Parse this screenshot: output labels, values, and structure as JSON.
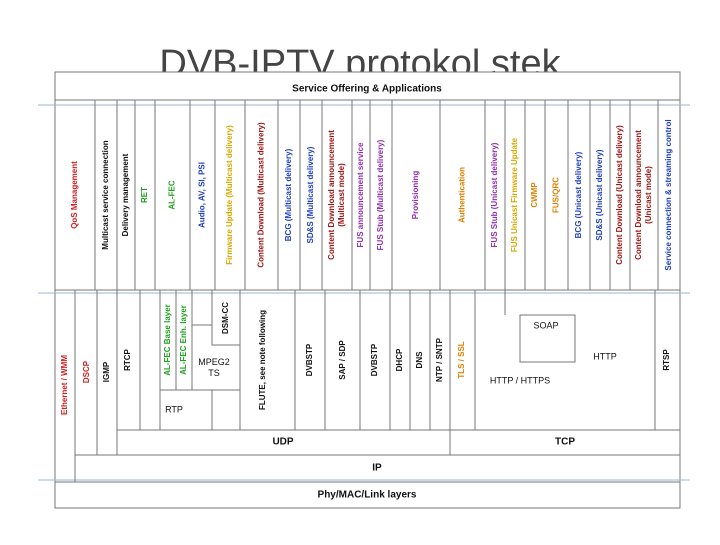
{
  "title": "DVB-IPTV protokol stek",
  "header": "Service Offering & Applications",
  "applications": [
    {
      "lines": [
        "QoS Management"
      ],
      "color": "#d02020"
    },
    {
      "lines": [
        "Multicast service connection"
      ],
      "color": "#111111"
    },
    {
      "lines": [
        "Delivery management"
      ],
      "color": "#111111"
    },
    {
      "lines": [
        "RET"
      ],
      "color": "#20a020"
    },
    {
      "lines": [
        "AL-FEC"
      ],
      "color": "#20a020"
    },
    {
      "lines": [
        "Audio, AV, SI, PSI"
      ],
      "color": "#2040c0"
    },
    {
      "lines": [
        "Firmware Update (Multicast delivery)"
      ],
      "color": "#d8a800"
    },
    {
      "lines": [
        "Content Download (Multicast delivery)"
      ],
      "color": "#a01818"
    },
    {
      "lines": [
        "BCG (Multicast delivery)"
      ],
      "color": "#2040c0"
    },
    {
      "lines": [
        "SD&S (Multicast delivery)"
      ],
      "color": "#2040c0"
    },
    {
      "lines": [
        "Content Download announcement",
        "(Multicast mode)"
      ],
      "color": "#a01818"
    },
    {
      "lines": [
        "FUS announcement service"
      ],
      "color": "#9030b0"
    },
    {
      "lines": [
        "FUS Stub (Multicast delivery)"
      ],
      "color": "#9030b0"
    },
    {
      "lines": [
        "Provisioning"
      ],
      "color": "#9030b0"
    },
    {
      "lines": [
        "Authentication"
      ],
      "color": "#e08000"
    },
    {
      "lines": [
        "FUS Stub (Unicast delivery)"
      ],
      "color": "#9030b0"
    },
    {
      "lines": [
        "FUS Unicast Firmware Update"
      ],
      "color": "#d8a800"
    },
    {
      "lines": [
        "CWMP"
      ],
      "color": "#e08000"
    },
    {
      "lines": [
        "FUS/QRC"
      ],
      "color": "#e08000"
    },
    {
      "lines": [
        "BCG (Unicast delivery)"
      ],
      "color": "#2040c0"
    },
    {
      "lines": [
        "SD&S (Unicast delivery)"
      ],
      "color": "#2040c0"
    },
    {
      "lines": [
        "Content Download (Unicast delivery)"
      ],
      "color": "#a01818"
    },
    {
      "lines": [
        "Content Download announcement",
        "(Unicast mode)"
      ],
      "color": "#a01818"
    },
    {
      "lines": [
        "Service connection & streaming control"
      ],
      "color": "#2040c0"
    }
  ],
  "protocols": [
    {
      "lines": [
        "Ethernet / WMM"
      ],
      "color": "#d02020"
    },
    {
      "lines": [
        "DSCP"
      ],
      "color": "#d02020"
    },
    {
      "lines": [
        "IGMP"
      ],
      "color": "#111111"
    },
    {
      "lines": [
        "RTCP"
      ],
      "color": "#111111"
    },
    {
      "lines": [
        "AL-FEC Base layer"
      ],
      "color": "#20a020"
    },
    {
      "lines": [
        "AL-FEC Enh. layer"
      ],
      "color": "#20a020"
    },
    {
      "lines": [
        "MPEG2",
        "TS"
      ],
      "color": "#111111"
    },
    {
      "lines": [
        "RTP"
      ],
      "color": "#111111"
    },
    {
      "lines": [
        "DSM-CC"
      ],
      "color": "#111111"
    },
    {
      "lines": [
        "FLUTE, see note following"
      ],
      "color": "#111111"
    },
    {
      "lines": [
        "DVBSTP"
      ],
      "color": "#111111"
    },
    {
      "lines": [
        "SAP / SDP"
      ],
      "color": "#111111"
    },
    {
      "lines": [
        "DVBSTP"
      ],
      "color": "#111111"
    },
    {
      "lines": [
        "DHCP"
      ],
      "color": "#111111"
    },
    {
      "lines": [
        "DNS"
      ],
      "color": "#111111"
    },
    {
      "lines": [
        "NTP / SNTP"
      ],
      "color": "#111111"
    },
    {
      "lines": [
        "TLS / SSL"
      ],
      "color": "#e08000"
    },
    {
      "lines": [
        "SOAP"
      ],
      "color": "#111111"
    },
    {
      "lines": [
        "HTTP"
      ],
      "color": "#111111"
    },
    {
      "lines": [
        "HTTP / HTTPS"
      ],
      "color": "#111111"
    },
    {
      "lines": [
        "RTSP"
      ],
      "color": "#111111"
    }
  ],
  "transport": {
    "udp": "UDP",
    "tcp": "TCP"
  },
  "network": "IP",
  "link": "Phy/MAC/Link layers"
}
